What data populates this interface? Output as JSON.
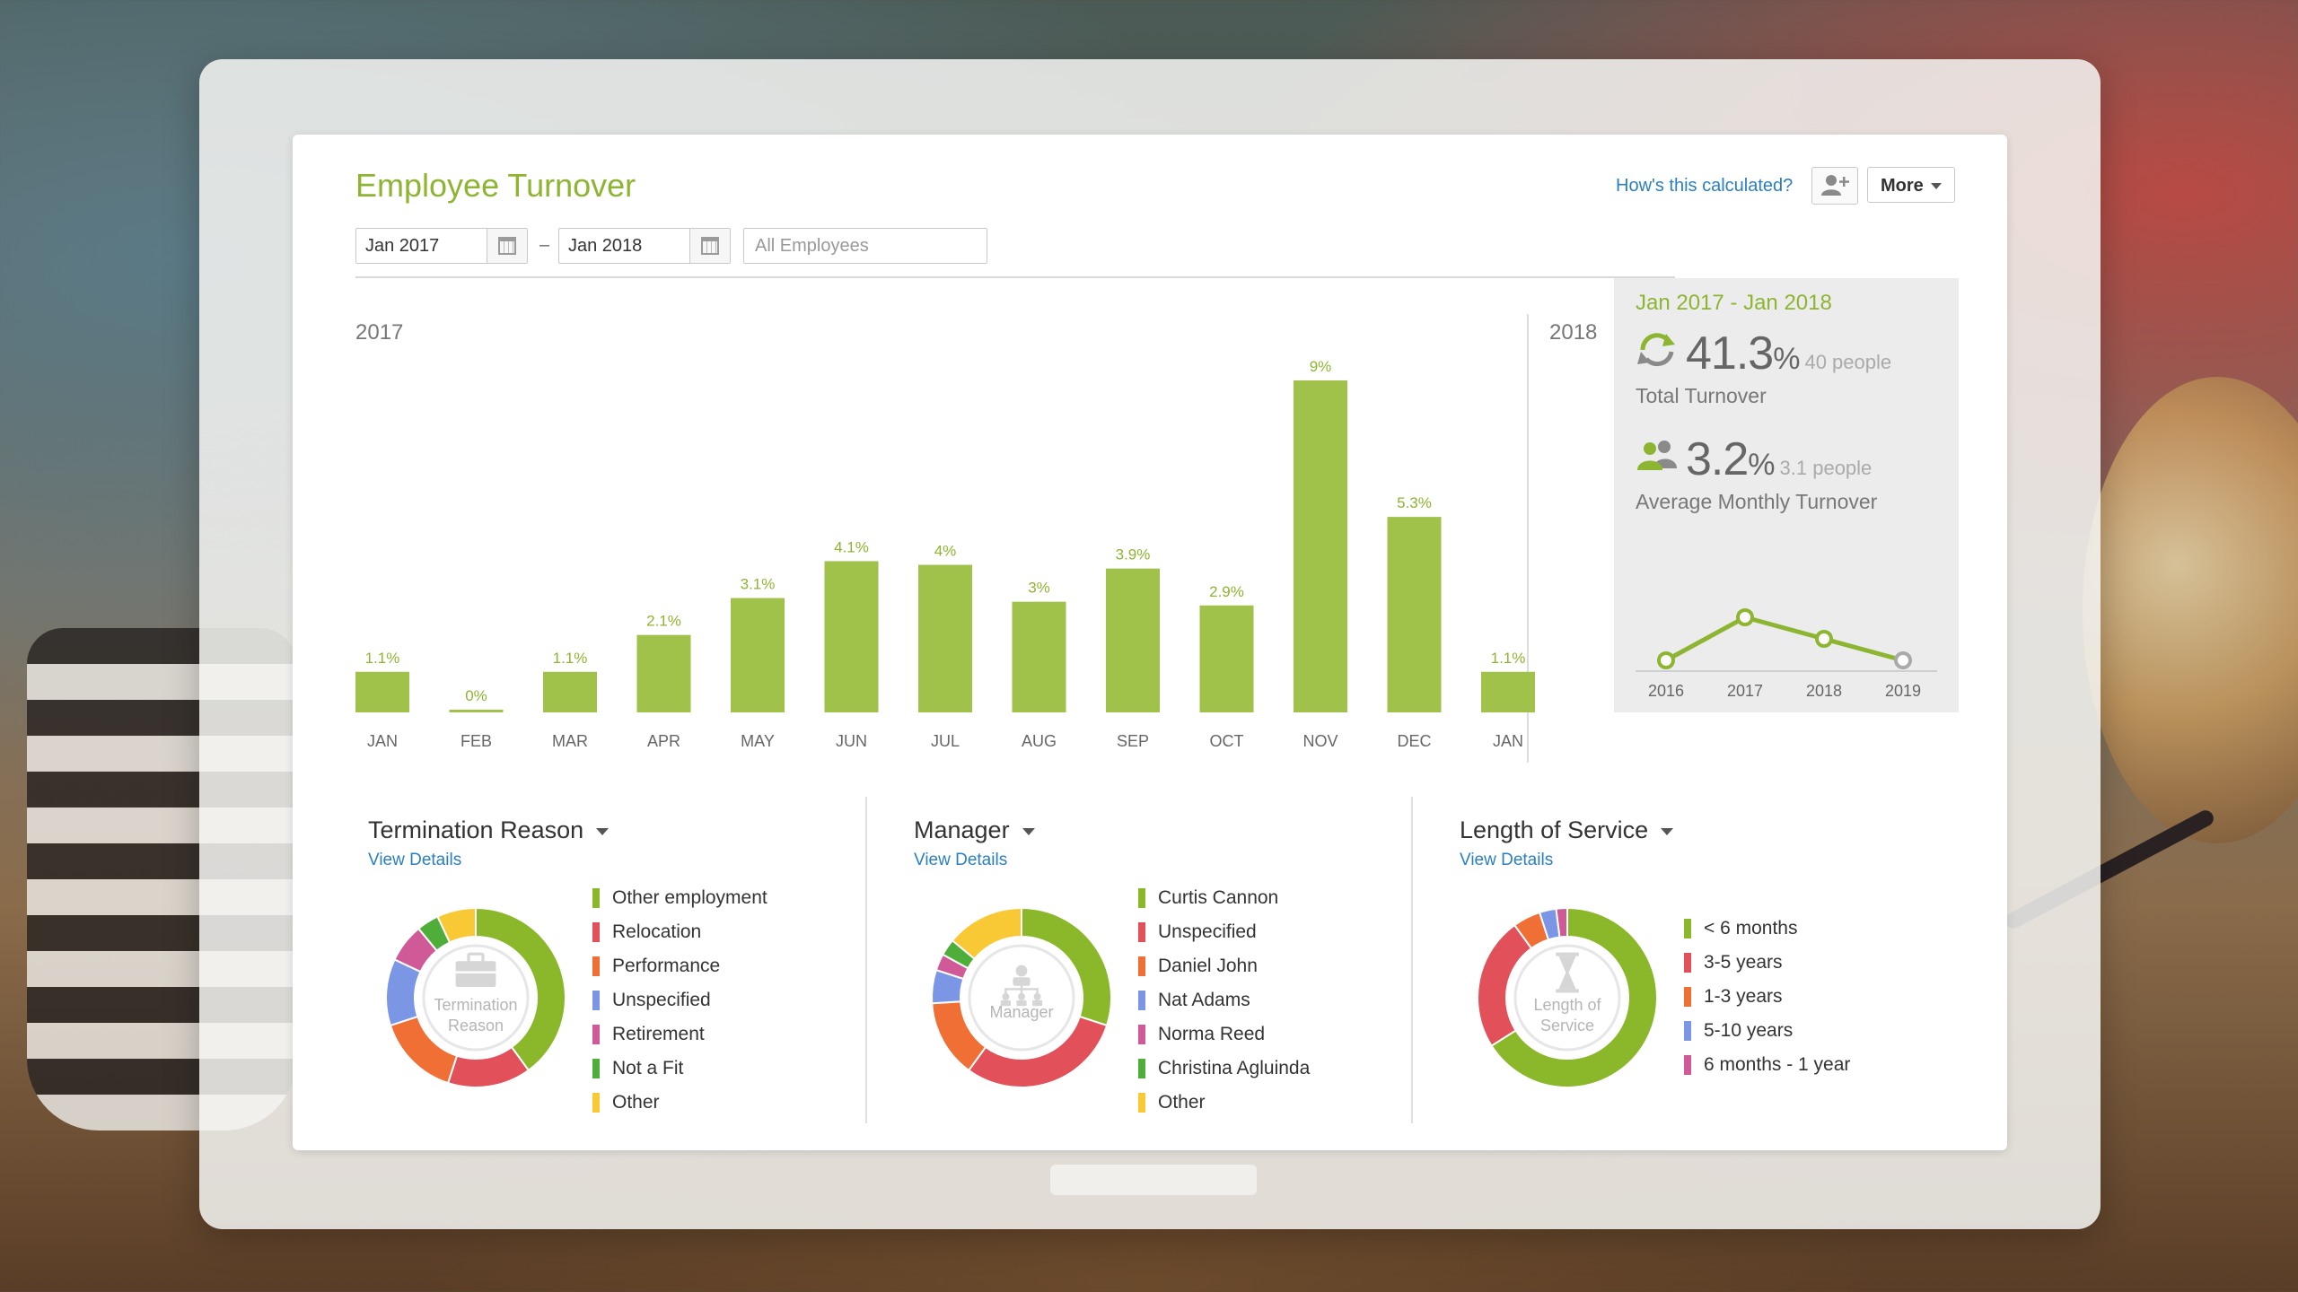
{
  "header": {
    "title": "Employee Turnover",
    "how_link": "How's this calculated?",
    "more_label": "More",
    "start_date": "Jan 2017",
    "end_date": "Jan 2018",
    "date_separator": "–",
    "filter_placeholder": "All Employees"
  },
  "chart_data": {
    "type": "bar",
    "year_labels": [
      "2017",
      "2018"
    ],
    "categories": [
      "JAN",
      "FEB",
      "MAR",
      "APR",
      "MAY",
      "JUN",
      "JUL",
      "AUG",
      "SEP",
      "OCT",
      "NOV",
      "DEC",
      "JAN"
    ],
    "values": [
      1.1,
      0,
      1.1,
      2.1,
      3.1,
      4.1,
      4,
      3,
      3.9,
      2.9,
      9,
      5.3,
      1.1
    ],
    "value_labels": [
      "1.1%",
      "0%",
      "1.1%",
      "2.1%",
      "3.1%",
      "4.1%",
      "4%",
      "3%",
      "3.9%",
      "2.9%",
      "9%",
      "5.3%",
      "1.1%"
    ],
    "ylim": [
      0,
      9
    ],
    "bar_color": "#a0c14a",
    "grid": false
  },
  "summary": {
    "range": "Jan 2017 - Jan 2018",
    "total_value": "41.3",
    "total_unit": "%",
    "total_people": "40 people",
    "total_label": "Total Turnover",
    "avg_value": "3.2",
    "avg_unit": "%",
    "avg_people": "3.1 people",
    "avg_label": "Average Monthly Turnover",
    "trend": {
      "type": "line",
      "x": [
        "2016",
        "2017",
        "2018",
        "2019"
      ],
      "values": [
        1,
        3,
        2,
        1
      ]
    },
    "accent": "#8db531"
  },
  "sections": [
    {
      "title": "Termination Reason",
      "view_details": "View Details",
      "center_label_1": "Termination",
      "center_label_2": "Reason",
      "center_icon": "briefcase-icon",
      "slices": [
        {
          "label": "Other employment",
          "value": 40,
          "color": "#8ab82a"
        },
        {
          "label": "Relocation",
          "value": 15,
          "color": "#e2505a"
        },
        {
          "label": "Performance",
          "value": 15,
          "color": "#f06f35"
        },
        {
          "label": "Unspecified",
          "value": 12,
          "color": "#7b96e4"
        },
        {
          "label": "Retirement",
          "value": 7,
          "color": "#d05a98"
        },
        {
          "label": "Not a Fit",
          "value": 4,
          "color": "#4fae3a"
        },
        {
          "label": "Other",
          "value": 7,
          "color": "#f9c935"
        }
      ]
    },
    {
      "title": "Manager",
      "view_details": "View Details",
      "center_label_1": "Manager",
      "center_label_2": "",
      "center_icon": "org-chart-icon",
      "slices": [
        {
          "label": "Curtis Cannon",
          "value": 30,
          "color": "#8ab82a"
        },
        {
          "label": "Unspecified",
          "value": 30,
          "color": "#e2505a"
        },
        {
          "label": "Daniel John",
          "value": 14,
          "color": "#f06f35"
        },
        {
          "label": "Nat Adams",
          "value": 6,
          "color": "#7b96e4"
        },
        {
          "label": "Norma Reed",
          "value": 3,
          "color": "#d05a98"
        },
        {
          "label": "Christina Agluinda",
          "value": 3,
          "color": "#4fae3a"
        },
        {
          "label": "Other",
          "value": 14,
          "color": "#f9c935"
        }
      ]
    },
    {
      "title": "Length of Service",
      "view_details": "View Details",
      "center_label_1": "Length of",
      "center_label_2": "Service",
      "center_icon": "hourglass-icon",
      "slices": [
        {
          "label": "< 6 months",
          "value": 66,
          "color": "#8ab82a"
        },
        {
          "label": "3-5 years",
          "value": 24,
          "color": "#e2505a"
        },
        {
          "label": "1-3 years",
          "value": 5,
          "color": "#f06f35"
        },
        {
          "label": "5-10 years",
          "value": 3,
          "color": "#7b96e4"
        },
        {
          "label": "6 months - 1 year",
          "value": 2,
          "color": "#d05a98"
        }
      ]
    }
  ]
}
